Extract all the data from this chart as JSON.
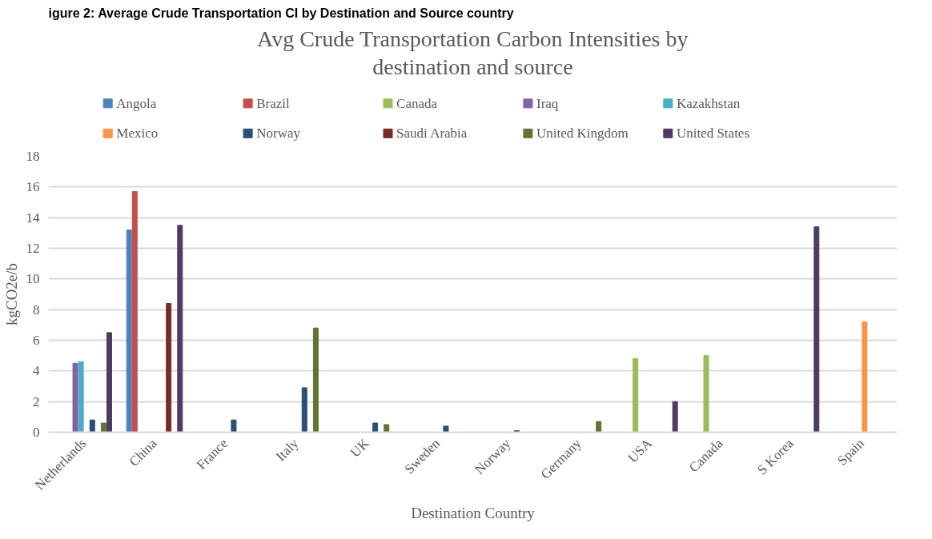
{
  "chart_data": {
    "type": "bar",
    "title": "Avg Crude Transportation Carbon Intensities by destination and source",
    "xlabel": "Destination Country",
    "ylabel": "kgCO2e/b",
    "annotations": [
      "igure 2: Average Crude Transportation CI by Destination and Source country"
    ],
    "categories": [
      "Netherlands",
      "China",
      "France",
      "Italy",
      "UK",
      "Sweden",
      "Norway",
      "Germany",
      "USA",
      "Canada",
      "S Korea",
      "Spain"
    ],
    "series": [
      {
        "name": "Angola",
        "color": "#4f81bd",
        "values": [
          null,
          13.2,
          null,
          null,
          null,
          null,
          null,
          null,
          null,
          null,
          null,
          null
        ]
      },
      {
        "name": "Brazil",
        "color": "#c0504d",
        "values": [
          null,
          15.7,
          null,
          null,
          null,
          null,
          null,
          null,
          null,
          null,
          null,
          null
        ]
      },
      {
        "name": "Canada",
        "color": "#9bbb59",
        "values": [
          null,
          null,
          null,
          null,
          null,
          null,
          null,
          null,
          4.8,
          5.0,
          null,
          null
        ]
      },
      {
        "name": "Iraq",
        "color": "#8064a2",
        "values": [
          4.5,
          null,
          null,
          null,
          null,
          null,
          null,
          null,
          null,
          null,
          null,
          null
        ]
      },
      {
        "name": "Kazakhstan",
        "color": "#4bacc6",
        "values": [
          4.6,
          null,
          null,
          null,
          null,
          null,
          null,
          null,
          null,
          null,
          null,
          null
        ]
      },
      {
        "name": "Mexico",
        "color": "#f79646",
        "values": [
          null,
          null,
          null,
          null,
          null,
          null,
          null,
          null,
          null,
          null,
          null,
          7.2
        ]
      },
      {
        "name": "Norway",
        "color": "#2c4d75",
        "values": [
          0.8,
          null,
          0.8,
          2.9,
          0.6,
          0.4,
          0.1,
          null,
          null,
          null,
          null,
          null
        ]
      },
      {
        "name": "Saudi Arabia",
        "color": "#772c2a",
        "values": [
          null,
          8.4,
          null,
          null,
          null,
          null,
          null,
          null,
          null,
          null,
          null,
          null
        ]
      },
      {
        "name": "United Kingdom",
        "color": "#5f7530",
        "values": [
          0.6,
          null,
          null,
          6.8,
          0.5,
          null,
          null,
          0.7,
          null,
          null,
          null,
          null
        ]
      },
      {
        "name": "United States",
        "color": "#4d3b62",
        "values": [
          6.5,
          13.5,
          null,
          null,
          null,
          null,
          null,
          null,
          2.0,
          null,
          13.4,
          null
        ]
      }
    ],
    "ylim": [
      0,
      18
    ],
    "yticks": [
      0,
      2,
      4,
      6,
      8,
      10,
      12,
      14,
      16,
      18
    ],
    "grid": "y",
    "legend": "top"
  }
}
